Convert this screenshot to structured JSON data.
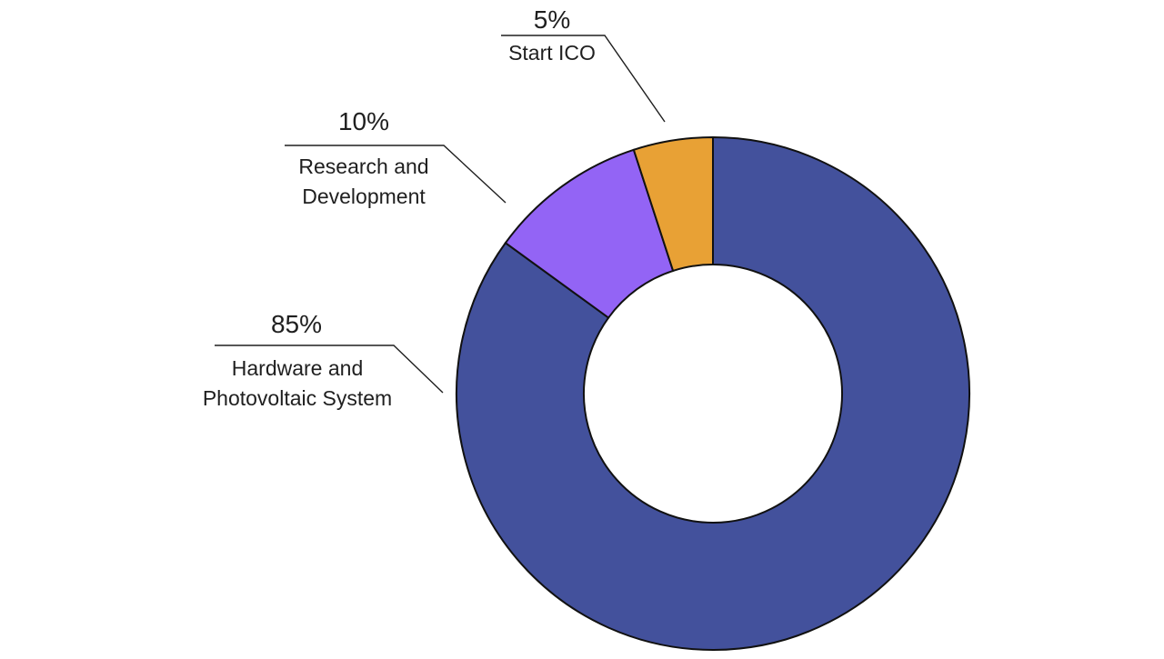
{
  "chart_data": {
    "type": "pie",
    "variant": "donut",
    "title": "",
    "start_angle_deg": 0,
    "direction": "clockwise",
    "slices": [
      {
        "label_lines": [
          "Hardware and",
          "Photovoltaic System"
        ],
        "value": 85,
        "display": "85%",
        "color": "#43519c"
      },
      {
        "label_lines": [
          "Research and",
          "Development"
        ],
        "value": 10,
        "display": "10%",
        "color": "#9364f5"
      },
      {
        "label_lines": [
          "Start ICO"
        ],
        "value": 5,
        "display": "5%",
        "color": "#e8a135"
      }
    ],
    "legend": "none",
    "edge_color": "#111111"
  }
}
